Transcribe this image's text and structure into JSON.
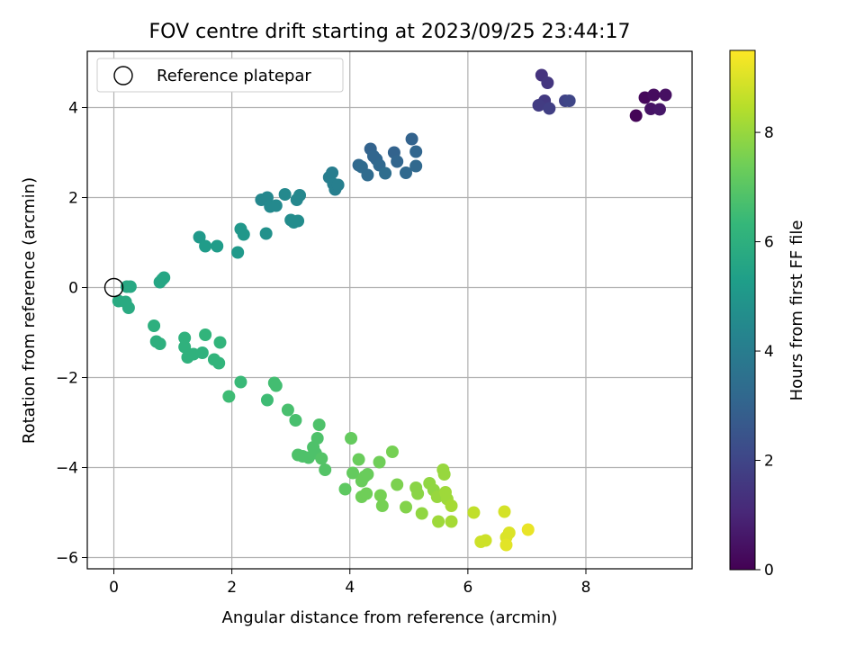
{
  "chart_data": {
    "type": "scatter",
    "title": "FOV centre drift starting at 2023/09/25 23:44:17",
    "xlabel": "Angular distance from reference (arcmin)",
    "ylabel": "Rotation from reference (arcmin)",
    "xlim": [
      -0.45,
      9.8
    ],
    "ylim": [
      -6.25,
      5.25
    ],
    "xticks": [
      0,
      2,
      4,
      6,
      8
    ],
    "xtick_labels": [
      "0",
      "2",
      "4",
      "6",
      "8"
    ],
    "yticks": [
      -6,
      -4,
      -2,
      0,
      2,
      4
    ],
    "ytick_labels": [
      "−6",
      "−4",
      "−2",
      "0",
      "2",
      "4"
    ],
    "grid": true,
    "legend": {
      "placement": "top-left",
      "entries": [
        {
          "label": "Reference platepar",
          "marker": "open-circle"
        }
      ]
    },
    "reference_point": {
      "x": 0,
      "y": 0
    },
    "colorbar": {
      "label": "Hours from first FF file",
      "colormap": "viridis",
      "range": [
        0,
        9.5
      ],
      "ticks": [
        0,
        2,
        4,
        6,
        8
      ],
      "tick_labels": [
        "0",
        "2",
        "4",
        "6",
        "8"
      ]
    },
    "colormap_stops": [
      "#440154",
      "#482878",
      "#3e4989",
      "#31688e",
      "#26828e",
      "#1f9e89",
      "#35b779",
      "#6ece58",
      "#b5de2b",
      "#fde725"
    ],
    "points": [
      {
        "x": 8.85,
        "y": 3.82,
        "t": 0.1
      },
      {
        "x": 9.0,
        "y": 4.22,
        "t": 0.2
      },
      {
        "x": 9.15,
        "y": 4.28,
        "t": 0.3
      },
      {
        "x": 9.35,
        "y": 4.28,
        "t": 0.4
      },
      {
        "x": 9.1,
        "y": 3.97,
        "t": 0.5
      },
      {
        "x": 9.25,
        "y": 3.96,
        "t": 0.6
      },
      {
        "x": 7.25,
        "y": 4.72,
        "t": 1.4
      },
      {
        "x": 7.35,
        "y": 4.55,
        "t": 1.5
      },
      {
        "x": 7.3,
        "y": 4.15,
        "t": 1.6
      },
      {
        "x": 7.2,
        "y": 4.05,
        "t": 1.7
      },
      {
        "x": 7.38,
        "y": 3.98,
        "t": 1.8
      },
      {
        "x": 7.65,
        "y": 4.15,
        "t": 1.9
      },
      {
        "x": 7.72,
        "y": 4.15,
        "t": 2.0
      },
      {
        "x": 4.35,
        "y": 3.08,
        "t": 3.0
      },
      {
        "x": 4.4,
        "y": 2.92,
        "t": 3.1
      },
      {
        "x": 4.45,
        "y": 2.85,
        "t": 3.1
      },
      {
        "x": 4.5,
        "y": 2.72,
        "t": 3.2
      },
      {
        "x": 4.15,
        "y": 2.72,
        "t": 3.2
      },
      {
        "x": 4.2,
        "y": 2.68,
        "t": 3.3
      },
      {
        "x": 4.3,
        "y": 2.5,
        "t": 3.3
      },
      {
        "x": 4.6,
        "y": 2.54,
        "t": 3.4
      },
      {
        "x": 4.75,
        "y": 3.0,
        "t": 3.0
      },
      {
        "x": 4.8,
        "y": 2.8,
        "t": 3.1
      },
      {
        "x": 4.95,
        "y": 2.55,
        "t": 3.2
      },
      {
        "x": 5.05,
        "y": 3.3,
        "t": 3.0
      },
      {
        "x": 5.12,
        "y": 3.02,
        "t": 3.1
      },
      {
        "x": 5.12,
        "y": 2.7,
        "t": 3.2
      },
      {
        "x": 3.65,
        "y": 2.45,
        "t": 4.0
      },
      {
        "x": 3.7,
        "y": 2.55,
        "t": 4.0
      },
      {
        "x": 3.72,
        "y": 2.3,
        "t": 4.1
      },
      {
        "x": 3.75,
        "y": 2.18,
        "t": 4.1
      },
      {
        "x": 3.8,
        "y": 2.28,
        "t": 4.1
      },
      {
        "x": 2.5,
        "y": 1.95,
        "t": 4.4
      },
      {
        "x": 2.6,
        "y": 2.0,
        "t": 4.4
      },
      {
        "x": 2.65,
        "y": 1.8,
        "t": 4.5
      },
      {
        "x": 2.75,
        "y": 1.82,
        "t": 4.5
      },
      {
        "x": 2.9,
        "y": 2.07,
        "t": 4.5
      },
      {
        "x": 3.1,
        "y": 1.95,
        "t": 4.4
      },
      {
        "x": 3.15,
        "y": 2.05,
        "t": 4.4
      },
      {
        "x": 3.0,
        "y": 1.5,
        "t": 4.6
      },
      {
        "x": 3.05,
        "y": 1.45,
        "t": 4.6
      },
      {
        "x": 3.12,
        "y": 1.48,
        "t": 4.6
      },
      {
        "x": 2.58,
        "y": 1.2,
        "t": 4.8
      },
      {
        "x": 2.15,
        "y": 1.3,
        "t": 5.0
      },
      {
        "x": 2.2,
        "y": 1.18,
        "t": 5.0
      },
      {
        "x": 2.1,
        "y": 0.78,
        "t": 5.1
      },
      {
        "x": 1.45,
        "y": 1.12,
        "t": 5.1
      },
      {
        "x": 1.55,
        "y": 0.92,
        "t": 5.2
      },
      {
        "x": 1.75,
        "y": 0.92,
        "t": 5.2
      },
      {
        "x": 0.78,
        "y": 0.12,
        "t": 5.6
      },
      {
        "x": 0.82,
        "y": 0.18,
        "t": 5.6
      },
      {
        "x": 0.85,
        "y": 0.22,
        "t": 5.6
      },
      {
        "x": 0.22,
        "y": 0.02,
        "t": 5.7
      },
      {
        "x": 0.28,
        "y": 0.02,
        "t": 5.7
      },
      {
        "x": 0.08,
        "y": -0.3,
        "t": 5.8
      },
      {
        "x": 0.2,
        "y": -0.32,
        "t": 5.8
      },
      {
        "x": 0.25,
        "y": -0.45,
        "t": 5.8
      },
      {
        "x": 0.68,
        "y": -0.85,
        "t": 6.0
      },
      {
        "x": 0.72,
        "y": -1.2,
        "t": 6.0
      },
      {
        "x": 0.78,
        "y": -1.25,
        "t": 6.0
      },
      {
        "x": 1.2,
        "y": -1.12,
        "t": 6.1
      },
      {
        "x": 1.2,
        "y": -1.32,
        "t": 6.1
      },
      {
        "x": 1.25,
        "y": -1.55,
        "t": 6.1
      },
      {
        "x": 1.35,
        "y": -1.48,
        "t": 6.1
      },
      {
        "x": 1.5,
        "y": -1.45,
        "t": 6.1
      },
      {
        "x": 1.55,
        "y": -1.05,
        "t": 6.2
      },
      {
        "x": 1.7,
        "y": -1.6,
        "t": 6.2
      },
      {
        "x": 1.78,
        "y": -1.68,
        "t": 6.2
      },
      {
        "x": 1.8,
        "y": -1.22,
        "t": 6.2
      },
      {
        "x": 2.15,
        "y": -2.1,
        "t": 6.4
      },
      {
        "x": 1.95,
        "y": -2.42,
        "t": 6.5
      },
      {
        "x": 2.6,
        "y": -2.5,
        "t": 6.5
      },
      {
        "x": 2.72,
        "y": -2.12,
        "t": 6.6
      },
      {
        "x": 2.75,
        "y": -2.18,
        "t": 6.6
      },
      {
        "x": 2.95,
        "y": -2.72,
        "t": 6.7
      },
      {
        "x": 3.08,
        "y": -2.95,
        "t": 6.7
      },
      {
        "x": 3.12,
        "y": -3.72,
        "t": 6.8
      },
      {
        "x": 3.2,
        "y": -3.75,
        "t": 6.8
      },
      {
        "x": 3.3,
        "y": -3.78,
        "t": 6.8
      },
      {
        "x": 3.38,
        "y": -3.55,
        "t": 6.8
      },
      {
        "x": 3.42,
        "y": -3.68,
        "t": 6.8
      },
      {
        "x": 3.45,
        "y": -3.35,
        "t": 6.8
      },
      {
        "x": 3.48,
        "y": -3.05,
        "t": 6.8
      },
      {
        "x": 3.52,
        "y": -3.8,
        "t": 6.9
      },
      {
        "x": 3.58,
        "y": -4.05,
        "t": 6.9
      },
      {
        "x": 3.92,
        "y": -4.48,
        "t": 7.1
      },
      {
        "x": 4.02,
        "y": -3.35,
        "t": 7.2
      },
      {
        "x": 4.05,
        "y": -4.12,
        "t": 7.2
      },
      {
        "x": 4.15,
        "y": -3.82,
        "t": 7.3
      },
      {
        "x": 4.2,
        "y": -4.3,
        "t": 7.3
      },
      {
        "x": 4.25,
        "y": -4.2,
        "t": 7.3
      },
      {
        "x": 4.3,
        "y": -4.15,
        "t": 7.3
      },
      {
        "x": 4.2,
        "y": -4.65,
        "t": 7.4
      },
      {
        "x": 4.28,
        "y": -4.58,
        "t": 7.4
      },
      {
        "x": 4.5,
        "y": -3.88,
        "t": 7.4
      },
      {
        "x": 4.52,
        "y": -4.62,
        "t": 7.5
      },
      {
        "x": 4.55,
        "y": -4.85,
        "t": 7.5
      },
      {
        "x": 4.72,
        "y": -3.65,
        "t": 7.5
      },
      {
        "x": 4.8,
        "y": -4.38,
        "t": 7.6
      },
      {
        "x": 4.95,
        "y": -4.88,
        "t": 7.7
      },
      {
        "x": 5.12,
        "y": -4.45,
        "t": 7.8
      },
      {
        "x": 5.15,
        "y": -4.58,
        "t": 7.8
      },
      {
        "x": 5.22,
        "y": -5.02,
        "t": 7.9
      },
      {
        "x": 5.35,
        "y": -4.35,
        "t": 7.9
      },
      {
        "x": 5.42,
        "y": -4.5,
        "t": 7.9
      },
      {
        "x": 5.48,
        "y": -4.65,
        "t": 8.0
      },
      {
        "x": 5.5,
        "y": -5.2,
        "t": 8.1
      },
      {
        "x": 5.58,
        "y": -4.05,
        "t": 8.0
      },
      {
        "x": 5.6,
        "y": -4.15,
        "t": 8.0
      },
      {
        "x": 5.62,
        "y": -4.55,
        "t": 8.1
      },
      {
        "x": 5.65,
        "y": -4.7,
        "t": 8.1
      },
      {
        "x": 5.72,
        "y": -4.85,
        "t": 8.2
      },
      {
        "x": 5.72,
        "y": -5.2,
        "t": 8.2
      },
      {
        "x": 6.1,
        "y": -5.0,
        "t": 8.6
      },
      {
        "x": 6.22,
        "y": -5.65,
        "t": 8.8
      },
      {
        "x": 6.3,
        "y": -5.62,
        "t": 8.8
      },
      {
        "x": 6.62,
        "y": -4.98,
        "t": 8.9
      },
      {
        "x": 6.65,
        "y": -5.55,
        "t": 9.0
      },
      {
        "x": 6.7,
        "y": -5.45,
        "t": 9.0
      },
      {
        "x": 6.65,
        "y": -5.72,
        "t": 9.1
      },
      {
        "x": 7.02,
        "y": -5.38,
        "t": 9.2
      }
    ]
  }
}
